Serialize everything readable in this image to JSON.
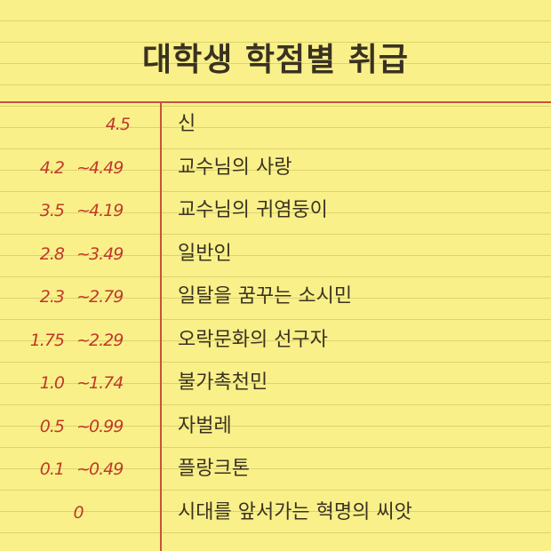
{
  "title": "대학생 학점별 취급",
  "rows": [
    {
      "low": "4.5",
      "high": "",
      "label": "신"
    },
    {
      "low": "4.2",
      "high": "4.49",
      "label": "교수님의 사랑"
    },
    {
      "low": "3.5",
      "high": "4.19",
      "label": "교수님의 귀염둥이"
    },
    {
      "low": "2.8",
      "high": "3.49",
      "label": "일반인"
    },
    {
      "low": "2.3",
      "high": "2.79",
      "label": "일탈을 꿈꾸는 소시민"
    },
    {
      "low": "1.75",
      "high": "2.29",
      "label": "오락문화의 선구자"
    },
    {
      "low": "1.0",
      "high": "1.74",
      "label": "불가촉천민"
    },
    {
      "low": "0.5",
      "high": "0.99",
      "label": "자벌레"
    },
    {
      "low": "0.1",
      "high": "0.49",
      "label": "플랑크톤"
    },
    {
      "low": "0",
      "high": "",
      "label": "시대를 앞서가는 혁명의 씨앗"
    }
  ],
  "colors": {
    "paper": "#f9f08a",
    "ink": "#3a3220",
    "red_ink": "#c0392b",
    "margin_line": "#c9523e"
  }
}
